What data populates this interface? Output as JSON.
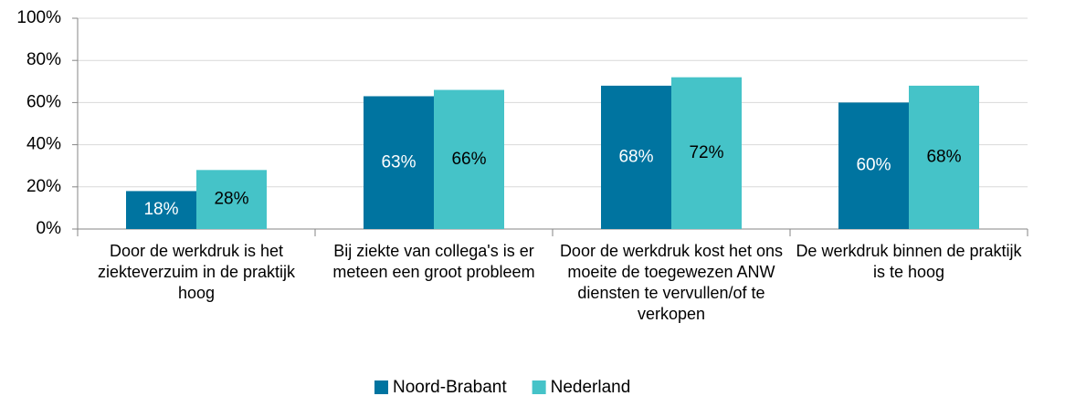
{
  "chart_data": {
    "type": "bar",
    "categories": [
      "Door de werkdruk is het ziekteverzuim in de praktijk hoog",
      "Bij ziekte van collega's is er meteen een groot probleem",
      "Door de werkdruk kost het ons moeite de toegewezen ANW diensten te vervullen/of te verkopen",
      "De werkdruk binnen de praktijk is te hoog"
    ],
    "series": [
      {
        "name": "Noord-Brabant",
        "color": "#0074a0",
        "values": [
          18,
          63,
          68,
          60
        ],
        "value_labels": [
          "18%",
          "63%",
          "68%",
          "60%"
        ],
        "label_color": "#ffffff"
      },
      {
        "name": "Nederland",
        "color": "#45c3c8",
        "values": [
          28,
          66,
          72,
          68
        ],
        "value_labels": [
          "28%",
          "66%",
          "72%",
          "68%"
        ],
        "label_color": "#000000"
      }
    ],
    "ylim": [
      0,
      100
    ],
    "yticks": [
      {
        "value": 0,
        "label": "0%"
      },
      {
        "value": 20,
        "label": "20%"
      },
      {
        "value": 40,
        "label": "40%"
      },
      {
        "value": 60,
        "label": "60%"
      },
      {
        "value": 80,
        "label": "80%"
      },
      {
        "value": 100,
        "label": "100%"
      }
    ],
    "grid": true,
    "legend": "bottom"
  }
}
